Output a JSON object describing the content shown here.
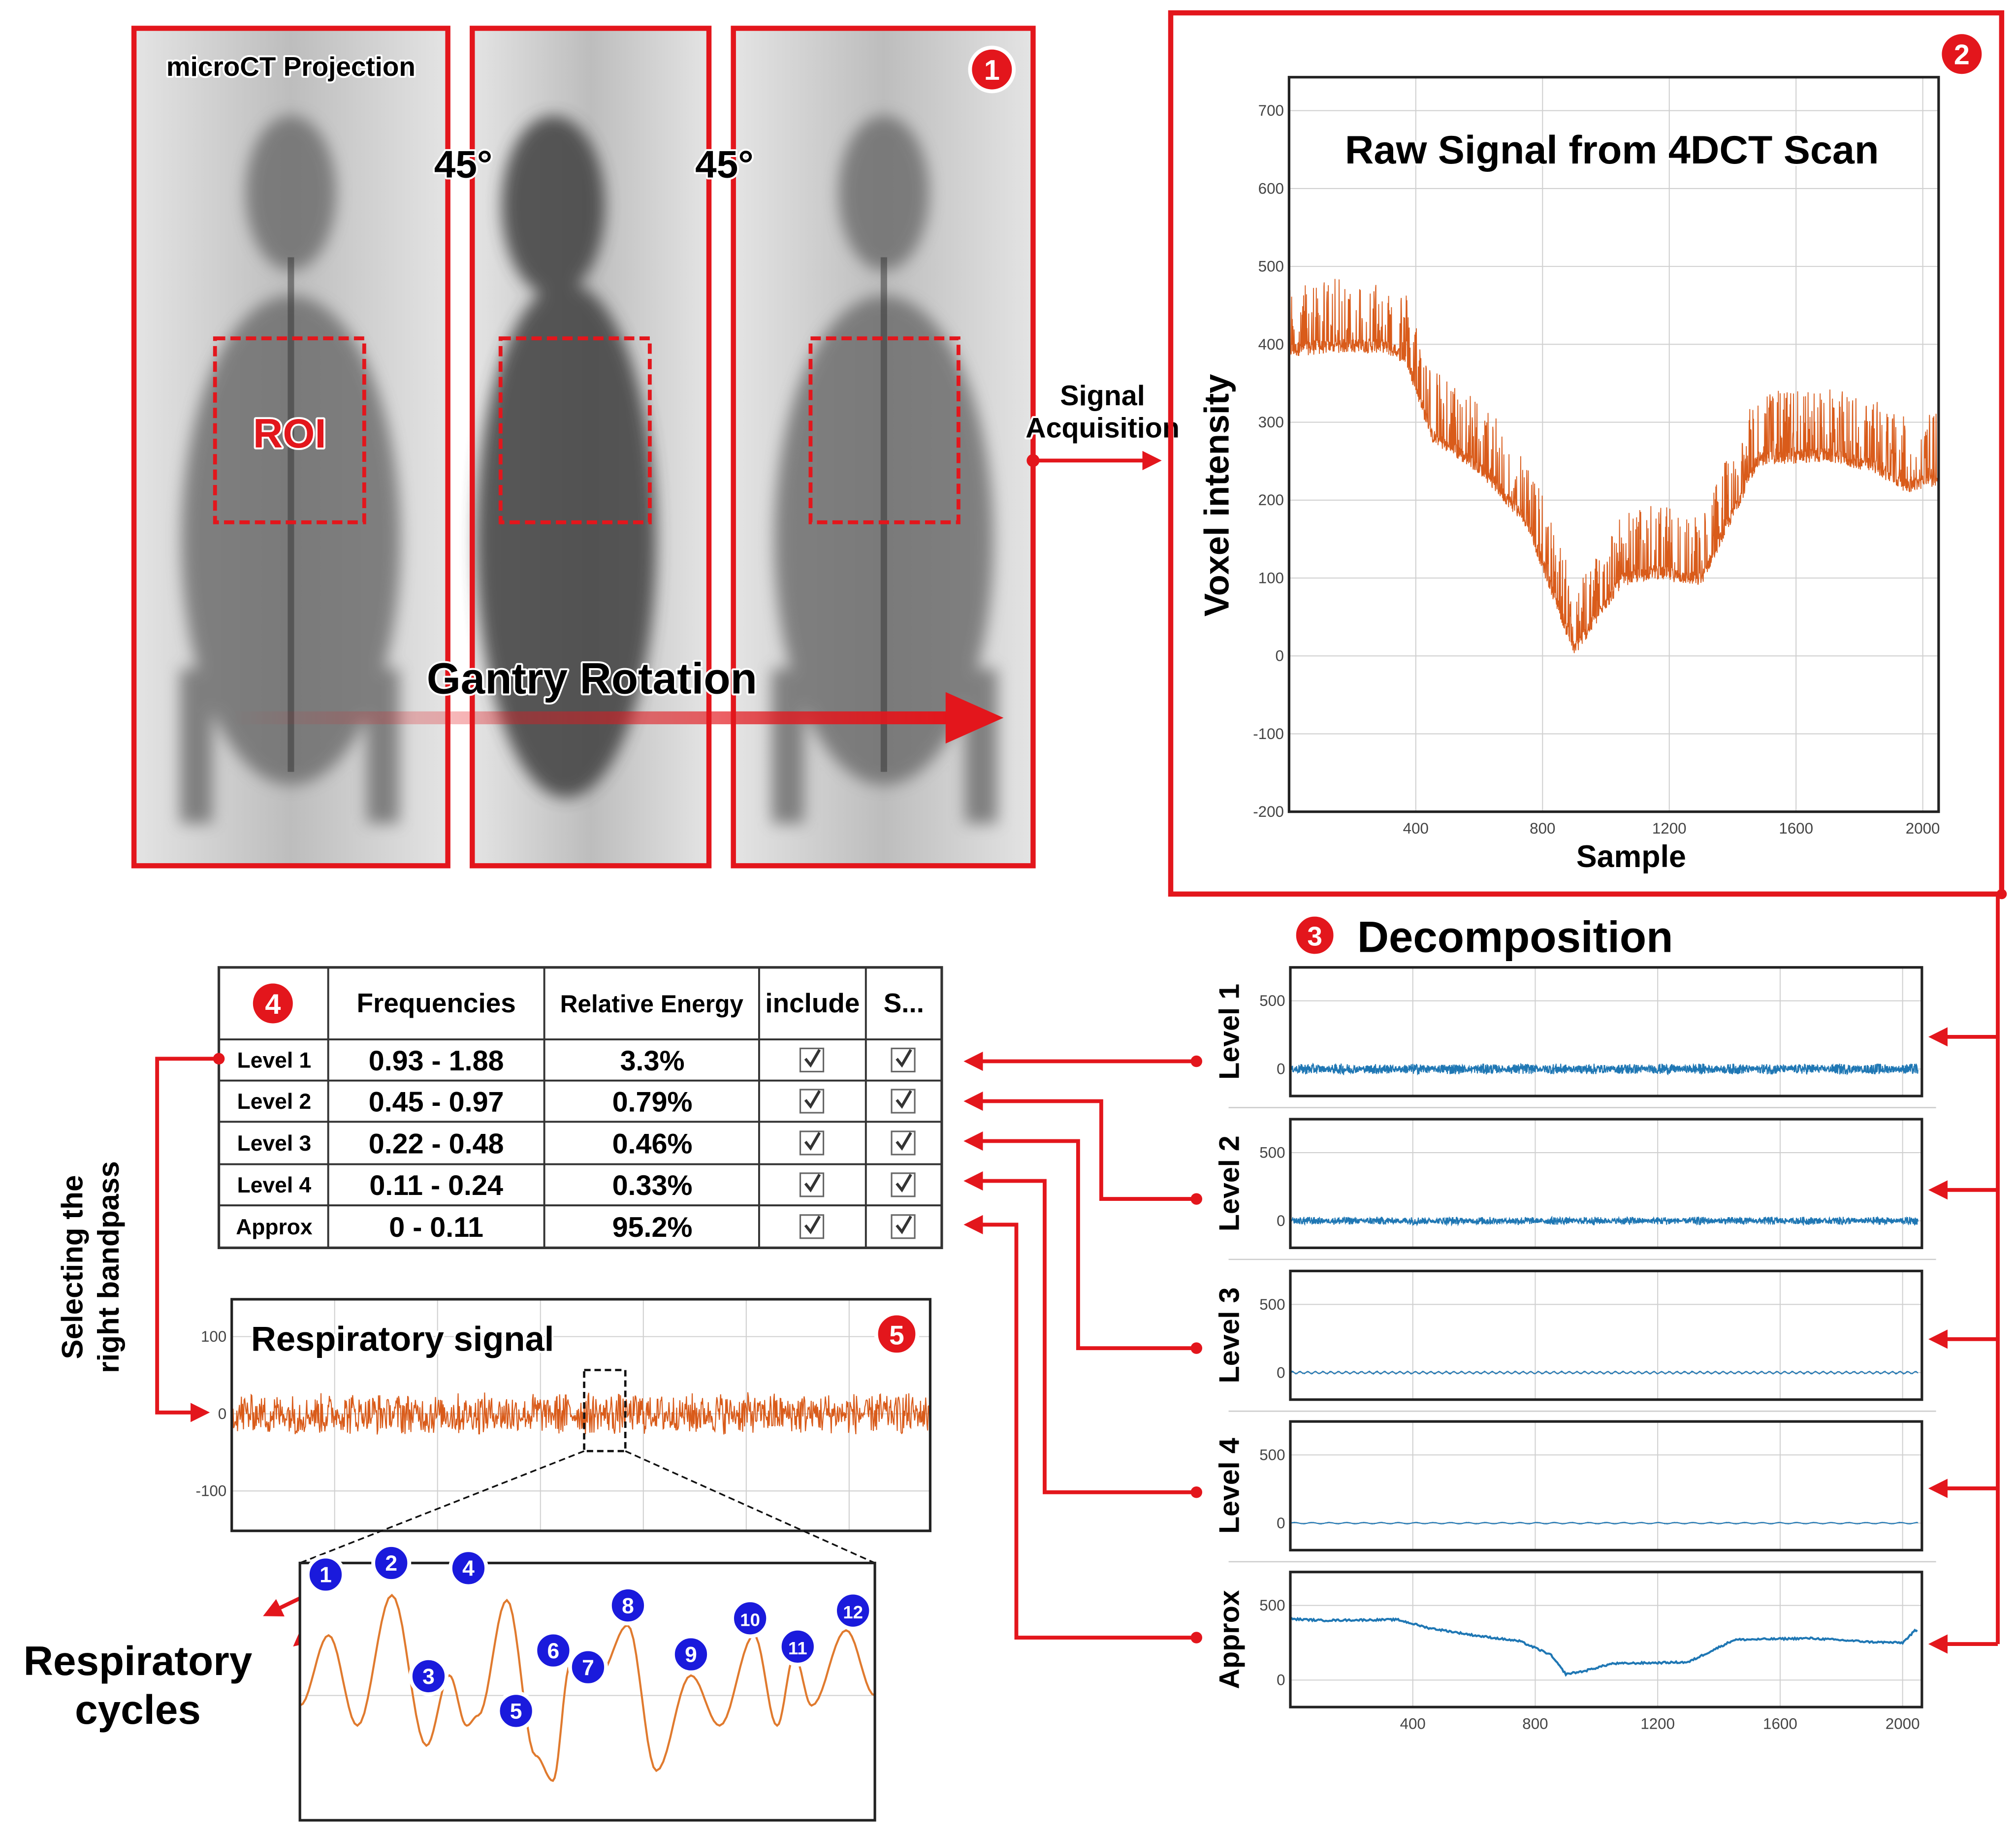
{
  "panel1": {
    "badge": "1",
    "title": "microCT Projection",
    "angle1": "45°",
    "angle2": "45°",
    "roi": "ROI",
    "gantry": "Gantry Rotation"
  },
  "acquisition": {
    "line1": "Signal",
    "line2": "Acquisition"
  },
  "panel2": {
    "badge": "2"
  },
  "decomposition": {
    "badge": "3",
    "title": "Decomposition",
    "levels": [
      "Level 1",
      "Level 2",
      "Level 3",
      "Level 4",
      "Approx"
    ]
  },
  "table": {
    "badge": "4",
    "headers": [
      "Frequencies",
      "Relative Energy",
      "include",
      "S..."
    ],
    "rows": [
      {
        "label": "Level 1",
        "freq": "0.93 - 1.88",
        "energy": "3.3%",
        "include": true,
        "s": true
      },
      {
        "label": "Level 2",
        "freq": "0.45 - 0.97",
        "energy": "0.79%",
        "include": true,
        "s": true
      },
      {
        "label": "Level 3",
        "freq": "0.22 - 0.48",
        "energy": "0.46%",
        "include": true,
        "s": true
      },
      {
        "label": "Level 4",
        "freq": "0.11 - 0.24",
        "energy": "0.33%",
        "include": true,
        "s": true
      },
      {
        "label": "Approx",
        "freq": "0 - 0.11",
        "energy": "95.2%",
        "include": true,
        "s": true
      }
    ]
  },
  "bandpass": {
    "line1": "Selecting the",
    "line2": "right bandpass"
  },
  "respiratory": {
    "badge": "5",
    "title": "Respiratory signal"
  },
  "cycles": {
    "line1": "Respiratory",
    "line2": "cycles",
    "badges": [
      "1",
      "2",
      "3",
      "4",
      "5",
      "6",
      "7",
      "8",
      "9",
      "10",
      "11",
      "12"
    ]
  },
  "colors": {
    "accent": "#e3161c",
    "signal_orange": "#d95b1a",
    "decomp_blue": "#1f77b4",
    "badge_blue": "#1a1adc"
  },
  "chart_data": [
    {
      "id": "raw",
      "type": "line",
      "title": "Raw Signal from 4DCT Scan",
      "xlabel": "Sample",
      "ylabel": "Voxel intensity",
      "xlim": [
        0,
        2050
      ],
      "ylim": [
        -200,
        750
      ],
      "xticks": [
        "400",
        "800",
        "1200",
        "1600",
        "2000"
      ],
      "yticks": [
        "700",
        "600",
        "500",
        "400",
        "300",
        "200",
        "100",
        "0",
        "-100",
        "-200"
      ],
      "grid": true,
      "baseline": [
        [
          0,
          390
        ],
        [
          150,
          395
        ],
        [
          300,
          395
        ],
        [
          370,
          380
        ],
        [
          450,
          280
        ],
        [
          600,
          240
        ],
        [
          750,
          170
        ],
        [
          850,
          60
        ],
        [
          900,
          5
        ],
        [
          960,
          40
        ],
        [
          1050,
          95
        ],
        [
          1150,
          105
        ],
        [
          1300,
          95
        ],
        [
          1400,
          180
        ],
        [
          1480,
          250
        ],
        [
          1700,
          255
        ],
        [
          1850,
          240
        ],
        [
          1950,
          215
        ],
        [
          2050,
          225
        ]
      ],
      "spike_amplitude": 90
    },
    {
      "id": "level1",
      "type": "line",
      "ylabel": "Level 1",
      "yticks": [
        "500",
        "0"
      ],
      "noise_amplitude": 40
    },
    {
      "id": "level2",
      "type": "line",
      "ylabel": "Level 2",
      "yticks": [
        "500",
        "0"
      ],
      "noise_amplitude": 30
    },
    {
      "id": "level3",
      "type": "line",
      "ylabel": "Level 3",
      "yticks": [
        "500",
        "0"
      ],
      "noise_amplitude": 10
    },
    {
      "id": "level4",
      "type": "line",
      "ylabel": "Level 4",
      "yticks": [
        "500",
        "0"
      ],
      "noise_amplitude": 6
    },
    {
      "id": "approx",
      "type": "line",
      "ylabel": "Approx",
      "yticks": [
        "500",
        "0"
      ],
      "xticks": [
        "400",
        "800",
        "1200",
        "1600",
        "2000"
      ],
      "baseline": [
        [
          0,
          410
        ],
        [
          100,
          400
        ],
        [
          350,
          405
        ],
        [
          450,
          350
        ],
        [
          600,
          300
        ],
        [
          750,
          260
        ],
        [
          850,
          170
        ],
        [
          900,
          40
        ],
        [
          960,
          60
        ],
        [
          1050,
          110
        ],
        [
          1300,
          120
        ],
        [
          1400,
          220
        ],
        [
          1450,
          270
        ],
        [
          1700,
          280
        ],
        [
          1900,
          255
        ],
        [
          2000,
          250
        ],
        [
          2040,
          330
        ]
      ]
    },
    {
      "id": "respiratory",
      "type": "line",
      "title": "Respiratory signal",
      "yticks": [
        "100",
        "0",
        "-100"
      ],
      "ylim": [
        -150,
        150
      ],
      "noise_amplitude": 28
    },
    {
      "id": "cycles_zoom",
      "type": "line",
      "extrema": [
        [
          0,
          -0.1
        ],
        [
          5,
          0.6
        ],
        [
          10,
          -0.3
        ],
        [
          16,
          1.0
        ],
        [
          22,
          -0.5
        ],
        [
          26,
          0.2
        ],
        [
          29,
          -0.3
        ],
        [
          31,
          -0.2
        ],
        [
          36,
          0.95
        ],
        [
          41,
          -0.6
        ],
        [
          44,
          -0.85
        ],
        [
          47,
          0.3
        ],
        [
          50,
          0.1
        ],
        [
          52,
          0.2
        ],
        [
          57,
          0.7
        ],
        [
          62,
          -0.75
        ],
        [
          68,
          0.2
        ],
        [
          73,
          -0.3
        ],
        [
          79,
          0.6
        ],
        [
          83,
          -0.3
        ],
        [
          86,
          0.4
        ],
        [
          89,
          -0.1
        ],
        [
          95,
          0.65
        ],
        [
          100,
          0
        ]
      ]
    }
  ]
}
